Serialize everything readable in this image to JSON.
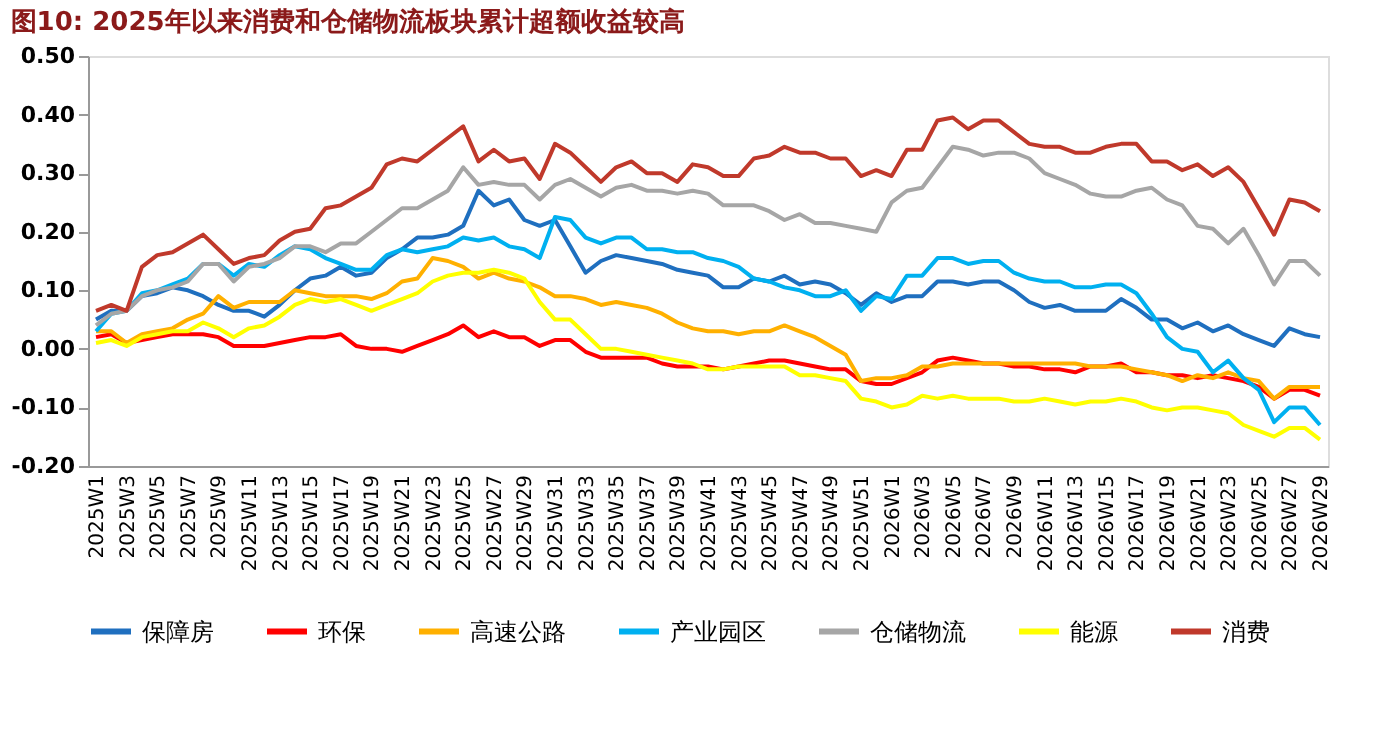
{
  "chart_data": {
    "type": "line",
    "title": "图10:  2025年以来消费和仓储物流板块累计超额收益较高",
    "categories": [
      "2025W1",
      null,
      "2025W3",
      null,
      "2025W5",
      null,
      "2025W7",
      null,
      "2025W9",
      null,
      "2025W11",
      null,
      "2025W13",
      null,
      "2025W15",
      null,
      "2025W17",
      null,
      "2025W19",
      null,
      "2025W21",
      null,
      "2025W23",
      null,
      "2025W25",
      null,
      "2025W27",
      null,
      "2025W29",
      null,
      "2025W31",
      null,
      "2025W33",
      null,
      "2025W35",
      null,
      "2025W37",
      null,
      "2025W39",
      null,
      "2025W41",
      null,
      "2025W43",
      null,
      "2025W45",
      null,
      "2025W47",
      null,
      "2025W49",
      null,
      "2025W51",
      null,
      "2026W1",
      null,
      "2026W3",
      null,
      "2026W5",
      null,
      "2026W7",
      null,
      "2026W9",
      null,
      "2026W11",
      null,
      "2026W13",
      null,
      "2026W15",
      null,
      "2026W17",
      null,
      "2026W19",
      null,
      "2026W21",
      null,
      "2026W23",
      null,
      "2026W25",
      null,
      "2026W27",
      null,
      "2026W29"
    ],
    "ylim": [
      -0.2,
      0.5
    ],
    "yticks": [
      {
        "value": 0.5,
        "label": "0.50"
      },
      {
        "value": 0.4,
        "label": "0.40"
      },
      {
        "value": 0.3,
        "label": "0.30"
      },
      {
        "value": 0.2,
        "label": "0.20"
      },
      {
        "value": 0.1,
        "label": "0.10"
      },
      {
        "value": 0,
        "label": "0.00"
      },
      {
        "value": -0.1,
        "label": "-0.10"
      },
      {
        "value": -0.2,
        "label": "-0.20"
      }
    ],
    "grid": false,
    "legend": "bottom",
    "marker": "none",
    "line_style": "solid",
    "series": [
      {
        "name": "保障房",
        "color": "#1f6fbf",
        "values": [
          0.05,
          0.065,
          0.065,
          0.09,
          0.095,
          0.105,
          0.1,
          0.09,
          0.075,
          0.065,
          0.065,
          0.055,
          0.075,
          0.1,
          0.12,
          0.125,
          0.14,
          0.125,
          0.13,
          0.155,
          0.17,
          0.19,
          0.19,
          0.195,
          0.21,
          0.27,
          0.245,
          0.255,
          0.22,
          0.21,
          0.22,
          0.175,
          0.13,
          0.15,
          0.16,
          0.155,
          0.15,
          0.145,
          0.135,
          0.13,
          0.125,
          0.105,
          0.105,
          0.12,
          0.115,
          0.125,
          0.11,
          0.115,
          0.11,
          0.095,
          0.075,
          0.095,
          0.08,
          0.09,
          0.09,
          0.115,
          0.115,
          0.11,
          0.115,
          0.115,
          0.1,
          0.08,
          0.07,
          0.075,
          0.065,
          0.065,
          0.065,
          0.085,
          0.07,
          0.05,
          0.05,
          0.035,
          0.045,
          0.03,
          0.04,
          0.025,
          0.015,
          0.005,
          0.035,
          0.025,
          0.02
        ]
      },
      {
        "name": "环保",
        "color": "#ff0000",
        "values": [
          0.02,
          0.025,
          0.01,
          0.015,
          0.02,
          0.025,
          0.025,
          0.025,
          0.02,
          0.005,
          0.005,
          0.005,
          0.01,
          0.015,
          0.02,
          0.02,
          0.025,
          0.005,
          0.0,
          0.0,
          -0.005,
          0.005,
          0.015,
          0.025,
          0.04,
          0.02,
          0.03,
          0.02,
          0.02,
          0.005,
          0.015,
          0.015,
          -0.005,
          -0.015,
          -0.015,
          -0.015,
          -0.015,
          -0.025,
          -0.03,
          -0.03,
          -0.03,
          -0.035,
          -0.03,
          -0.025,
          -0.02,
          -0.02,
          -0.025,
          -0.03,
          -0.035,
          -0.035,
          -0.055,
          -0.06,
          -0.06,
          -0.05,
          -0.04,
          -0.02,
          -0.015,
          -0.02,
          -0.025,
          -0.025,
          -0.03,
          -0.03,
          -0.035,
          -0.035,
          -0.04,
          -0.03,
          -0.03,
          -0.025,
          -0.04,
          -0.04,
          -0.045,
          -0.045,
          -0.05,
          -0.045,
          -0.05,
          -0.055,
          -0.065,
          -0.085,
          -0.07,
          -0.07,
          -0.08
        ]
      },
      {
        "name": "高速公路",
        "color": "#ffb000",
        "values": [
          0.03,
          0.03,
          0.01,
          0.025,
          0.03,
          0.035,
          0.05,
          0.06,
          0.09,
          0.07,
          0.08,
          0.08,
          0.08,
          0.1,
          0.095,
          0.09,
          0.09,
          0.09,
          0.085,
          0.095,
          0.115,
          0.12,
          0.155,
          0.15,
          0.14,
          0.12,
          0.13,
          0.12,
          0.115,
          0.105,
          0.09,
          0.09,
          0.085,
          0.075,
          0.08,
          0.075,
          0.07,
          0.06,
          0.045,
          0.035,
          0.03,
          0.03,
          0.025,
          0.03,
          0.03,
          0.04,
          0.03,
          0.02,
          0.005,
          -0.01,
          -0.055,
          -0.05,
          -0.05,
          -0.045,
          -0.03,
          -0.03,
          -0.025,
          -0.025,
          -0.025,
          -0.025,
          -0.025,
          -0.025,
          -0.025,
          -0.025,
          -0.025,
          -0.03,
          -0.03,
          -0.03,
          -0.035,
          -0.04,
          -0.045,
          -0.055,
          -0.045,
          -0.05,
          -0.04,
          -0.05,
          -0.055,
          -0.085,
          -0.065,
          -0.065,
          -0.065
        ]
      },
      {
        "name": "产业园区",
        "color": "#00b0f0",
        "values": [
          0.03,
          0.06,
          0.065,
          0.095,
          0.1,
          0.11,
          0.12,
          0.145,
          0.145,
          0.125,
          0.145,
          0.14,
          0.16,
          0.175,
          0.17,
          0.155,
          0.145,
          0.135,
          0.135,
          0.16,
          0.17,
          0.165,
          0.17,
          0.175,
          0.19,
          0.185,
          0.19,
          0.175,
          0.17,
          0.155,
          0.225,
          0.22,
          0.19,
          0.18,
          0.19,
          0.19,
          0.17,
          0.17,
          0.165,
          0.165,
          0.155,
          0.15,
          0.14,
          0.12,
          0.115,
          0.105,
          0.1,
          0.09,
          0.09,
          0.1,
          0.065,
          0.09,
          0.085,
          0.125,
          0.125,
          0.155,
          0.155,
          0.145,
          0.15,
          0.15,
          0.13,
          0.12,
          0.115,
          0.115,
          0.105,
          0.105,
          0.11,
          0.11,
          0.095,
          0.06,
          0.02,
          0.0,
          -0.005,
          -0.04,
          -0.02,
          -0.05,
          -0.07,
          -0.125,
          -0.1,
          -0.1,
          -0.13
        ]
      },
      {
        "name": "仓储物流",
        "color": "#a6a6a6",
        "values": [
          0.04,
          0.06,
          0.065,
          0.09,
          0.1,
          0.105,
          0.115,
          0.145,
          0.145,
          0.115,
          0.14,
          0.145,
          0.155,
          0.175,
          0.175,
          0.165,
          0.18,
          0.18,
          0.2,
          0.22,
          0.24,
          0.24,
          0.255,
          0.27,
          0.31,
          0.28,
          0.285,
          0.28,
          0.28,
          0.255,
          0.28,
          0.29,
          0.275,
          0.26,
          0.275,
          0.28,
          0.27,
          0.27,
          0.265,
          0.27,
          0.265,
          0.245,
          0.245,
          0.245,
          0.235,
          0.22,
          0.23,
          0.215,
          0.215,
          0.21,
          0.205,
          0.2,
          0.25,
          0.27,
          0.275,
          0.31,
          0.345,
          0.34,
          0.33,
          0.335,
          0.335,
          0.325,
          0.3,
          0.29,
          0.28,
          0.265,
          0.26,
          0.26,
          0.27,
          0.275,
          0.255,
          0.245,
          0.21,
          0.205,
          0.18,
          0.205,
          0.16,
          0.11,
          0.15,
          0.15,
          0.125
        ]
      },
      {
        "name": "能源",
        "color": "#ffff00",
        "values": [
          0.01,
          0.015,
          0.005,
          0.02,
          0.025,
          0.03,
          0.03,
          0.045,
          0.035,
          0.02,
          0.035,
          0.04,
          0.055,
          0.075,
          0.085,
          0.08,
          0.085,
          0.075,
          0.065,
          0.075,
          0.085,
          0.095,
          0.115,
          0.125,
          0.13,
          0.13,
          0.135,
          0.13,
          0.12,
          0.08,
          0.05,
          0.05,
          0.025,
          0.0,
          0.0,
          -0.005,
          -0.01,
          -0.015,
          -0.02,
          -0.025,
          -0.035,
          -0.035,
          -0.03,
          -0.03,
          -0.03,
          -0.03,
          -0.045,
          -0.045,
          -0.05,
          -0.055,
          -0.085,
          -0.09,
          -0.1,
          -0.095,
          -0.08,
          -0.085,
          -0.08,
          -0.085,
          -0.085,
          -0.085,
          -0.09,
          -0.09,
          -0.085,
          -0.09,
          -0.095,
          -0.09,
          -0.09,
          -0.085,
          -0.09,
          -0.1,
          -0.105,
          -0.1,
          -0.1,
          -0.105,
          -0.11,
          -0.13,
          -0.14,
          -0.15,
          -0.135,
          -0.135,
          -0.155
        ]
      },
      {
        "name": "消费",
        "color": "#c0392b",
        "values": [
          0.065,
          0.075,
          0.065,
          0.14,
          0.16,
          0.165,
          0.18,
          0.195,
          0.17,
          0.145,
          0.155,
          0.16,
          0.185,
          0.2,
          0.205,
          0.24,
          0.245,
          0.26,
          0.275,
          0.315,
          0.325,
          0.32,
          0.34,
          0.36,
          0.38,
          0.32,
          0.34,
          0.32,
          0.325,
          0.29,
          0.35,
          0.335,
          0.31,
          0.285,
          0.31,
          0.32,
          0.3,
          0.3,
          0.285,
          0.315,
          0.31,
          0.295,
          0.295,
          0.325,
          0.33,
          0.345,
          0.335,
          0.335,
          0.325,
          0.325,
          0.295,
          0.305,
          0.295,
          0.34,
          0.34,
          0.39,
          0.395,
          0.375,
          0.39,
          0.39,
          0.37,
          0.35,
          0.345,
          0.345,
          0.335,
          0.335,
          0.345,
          0.35,
          0.35,
          0.32,
          0.32,
          0.305,
          0.315,
          0.295,
          0.31,
          0.285,
          0.24,
          0.195,
          0.255,
          0.25,
          0.235
        ]
      }
    ]
  }
}
